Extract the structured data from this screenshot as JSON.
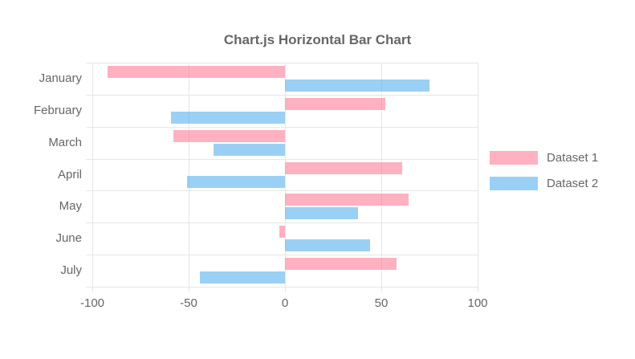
{
  "chart_data": {
    "type": "bar",
    "orientation": "horizontal",
    "title": "Chart.js Horizontal Bar Chart",
    "categories": [
      "January",
      "February",
      "March",
      "April",
      "May",
      "June",
      "July"
    ],
    "series": [
      {
        "name": "Dataset 1",
        "color": "rgba(255, 99, 132, 0.5)",
        "values": [
          -92,
          52,
          -58,
          61,
          64,
          -3,
          58
        ]
      },
      {
        "name": "Dataset 2",
        "color": "rgba(54, 162, 235, 0.5)",
        "values": [
          75,
          -59,
          -37,
          -51,
          38,
          44,
          -44
        ]
      }
    ],
    "xlim": [
      -100,
      100
    ],
    "x_ticks": [
      -100,
      -50,
      0,
      50,
      100
    ],
    "grid": true,
    "legend_position": "right",
    "text_color": "#666666",
    "grid_color": "#e6e6e6"
  }
}
